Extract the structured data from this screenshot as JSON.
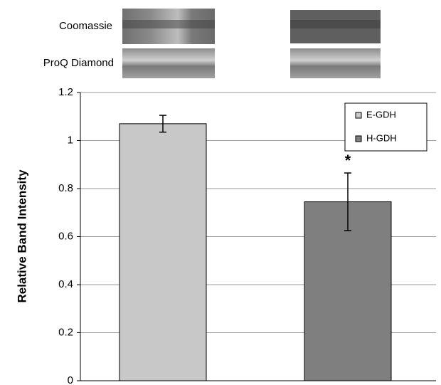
{
  "chart_data": {
    "type": "bar",
    "gel_labels": [
      "Coomassie",
      "ProQ Diamond"
    ],
    "ylabel": "Relative Band Intensity",
    "categories": [
      null,
      null
    ],
    "series": [
      {
        "name": "E-GDH",
        "color": "#c8c8c8",
        "values": [
          1.07,
          null
        ],
        "errors": [
          0.035,
          null
        ]
      },
      {
        "name": "H-GDH",
        "color": "#7f7f7f",
        "values": [
          null,
          0.745
        ],
        "errors": [
          null,
          0.12
        ]
      }
    ],
    "annotation": "*",
    "ylim": [
      0,
      1.2
    ],
    "yticks": [
      0,
      0.2,
      0.4,
      0.6,
      0.8,
      1,
      1.2
    ],
    "grid": true,
    "legend": "upper right"
  }
}
